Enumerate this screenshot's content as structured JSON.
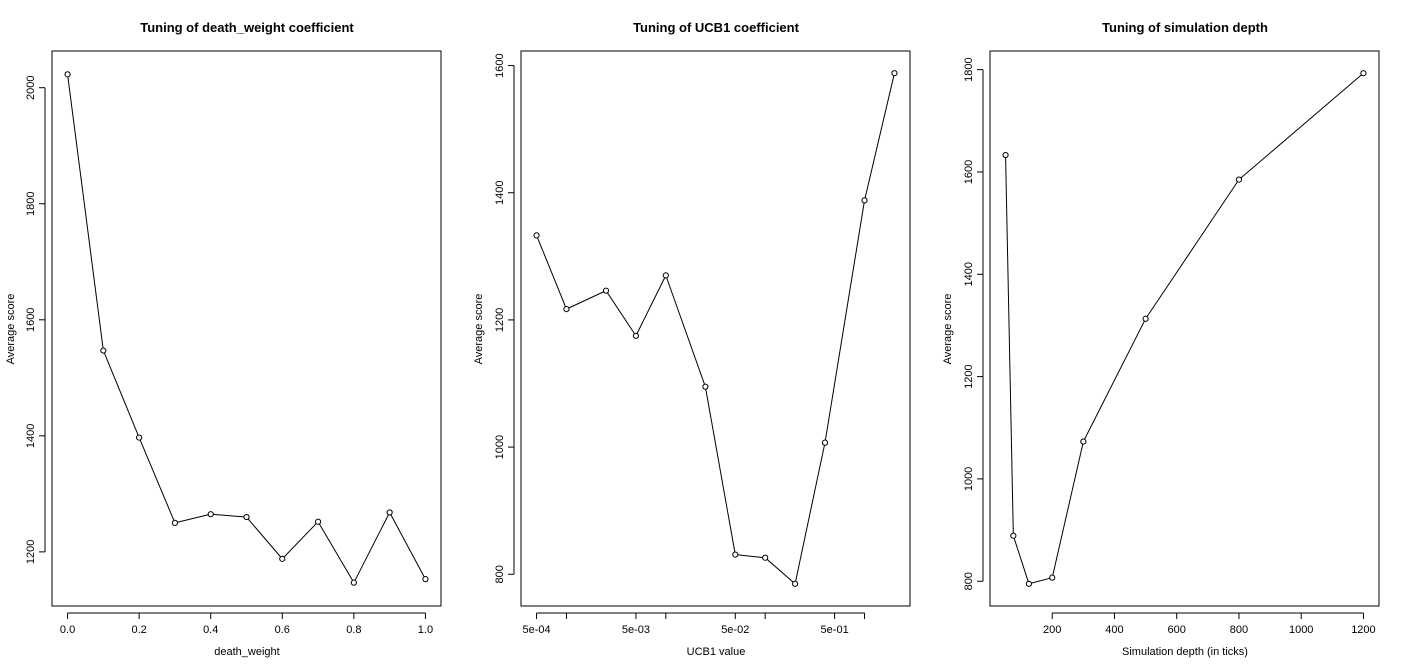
{
  "chart_data": [
    {
      "type": "line",
      "title": "Tuning of death_weight coefficient",
      "xlabel": "death_weight",
      "ylabel": "Average score",
      "xscale": "linear",
      "xlim": [
        0.0,
        1.0
      ],
      "ylim": [
        1145,
        2025
      ],
      "grid": false,
      "x_ticks": [
        0.0,
        0.2,
        0.4,
        0.6,
        0.8,
        1.0
      ],
      "x_tick_labels": [
        "0.0",
        "0.2",
        "0.4",
        "0.6",
        "0.8",
        "1.0"
      ],
      "y_ticks": [
        1200,
        1400,
        1600,
        1800,
        2000
      ],
      "y_tick_labels": [
        "1200",
        "1400",
        "1600",
        "1800",
        "2000"
      ],
      "x": [
        0.0,
        0.1,
        0.2,
        0.3,
        0.4,
        0.5,
        0.6,
        0.7,
        0.8,
        0.9,
        1.0
      ],
      "y": [
        2023,
        1547,
        1397,
        1250,
        1265,
        1260,
        1188,
        1252,
        1147,
        1268,
        1153
      ]
    },
    {
      "type": "line",
      "title": "Tuning of UCB1 coefficient",
      "xlabel": "UCB1 value",
      "ylabel": "Average score",
      "xscale": "log",
      "xlim": [
        0.0005,
        2.0
      ],
      "ylim": [
        785,
        1588
      ],
      "grid": false,
      "x_ticks": [
        0.0005,
        0.001,
        0.005,
        0.01,
        0.05,
        0.1,
        0.5,
        1.0
      ],
      "x_tick_labels": [
        "5e-04",
        "",
        "5e-03",
        "",
        "5e-02",
        "",
        "5e-01",
        ""
      ],
      "y_ticks": [
        800,
        1000,
        1200,
        1400,
        1600
      ],
      "y_tick_labels": [
        "800",
        "1000",
        "1200",
        "1400",
        "1600"
      ],
      "x": [
        0.0005,
        0.001,
        0.0025,
        0.005,
        0.01,
        0.025,
        0.05,
        0.1,
        0.2,
        0.4,
        1.0,
        2.0
      ],
      "y": [
        1333,
        1217,
        1246,
        1175,
        1270,
        1095,
        831,
        826,
        785,
        1007,
        1388,
        1588
      ]
    },
    {
      "type": "line",
      "title": "Tuning of simulation depth",
      "xlabel": "Simulation depth (in ticks)",
      "ylabel": "Average score",
      "xscale": "linear",
      "xlim": [
        50,
        1200
      ],
      "ylim": [
        795,
        1793
      ],
      "grid": false,
      "x_ticks": [
        200,
        400,
        600,
        800,
        1000,
        1200
      ],
      "x_tick_labels": [
        "200",
        "400",
        "600",
        "800",
        "1000",
        "1200"
      ],
      "y_ticks": [
        800,
        1000,
        1200,
        1400,
        1600,
        1800
      ],
      "y_tick_labels": [
        "800",
        "1000",
        "1200",
        "1400",
        "1600",
        "1800"
      ],
      "x": [
        50,
        75,
        125,
        200,
        300,
        500,
        800,
        1200
      ],
      "y": [
        1633,
        889,
        795,
        807,
        1073,
        1313,
        1585,
        1793
      ]
    }
  ]
}
